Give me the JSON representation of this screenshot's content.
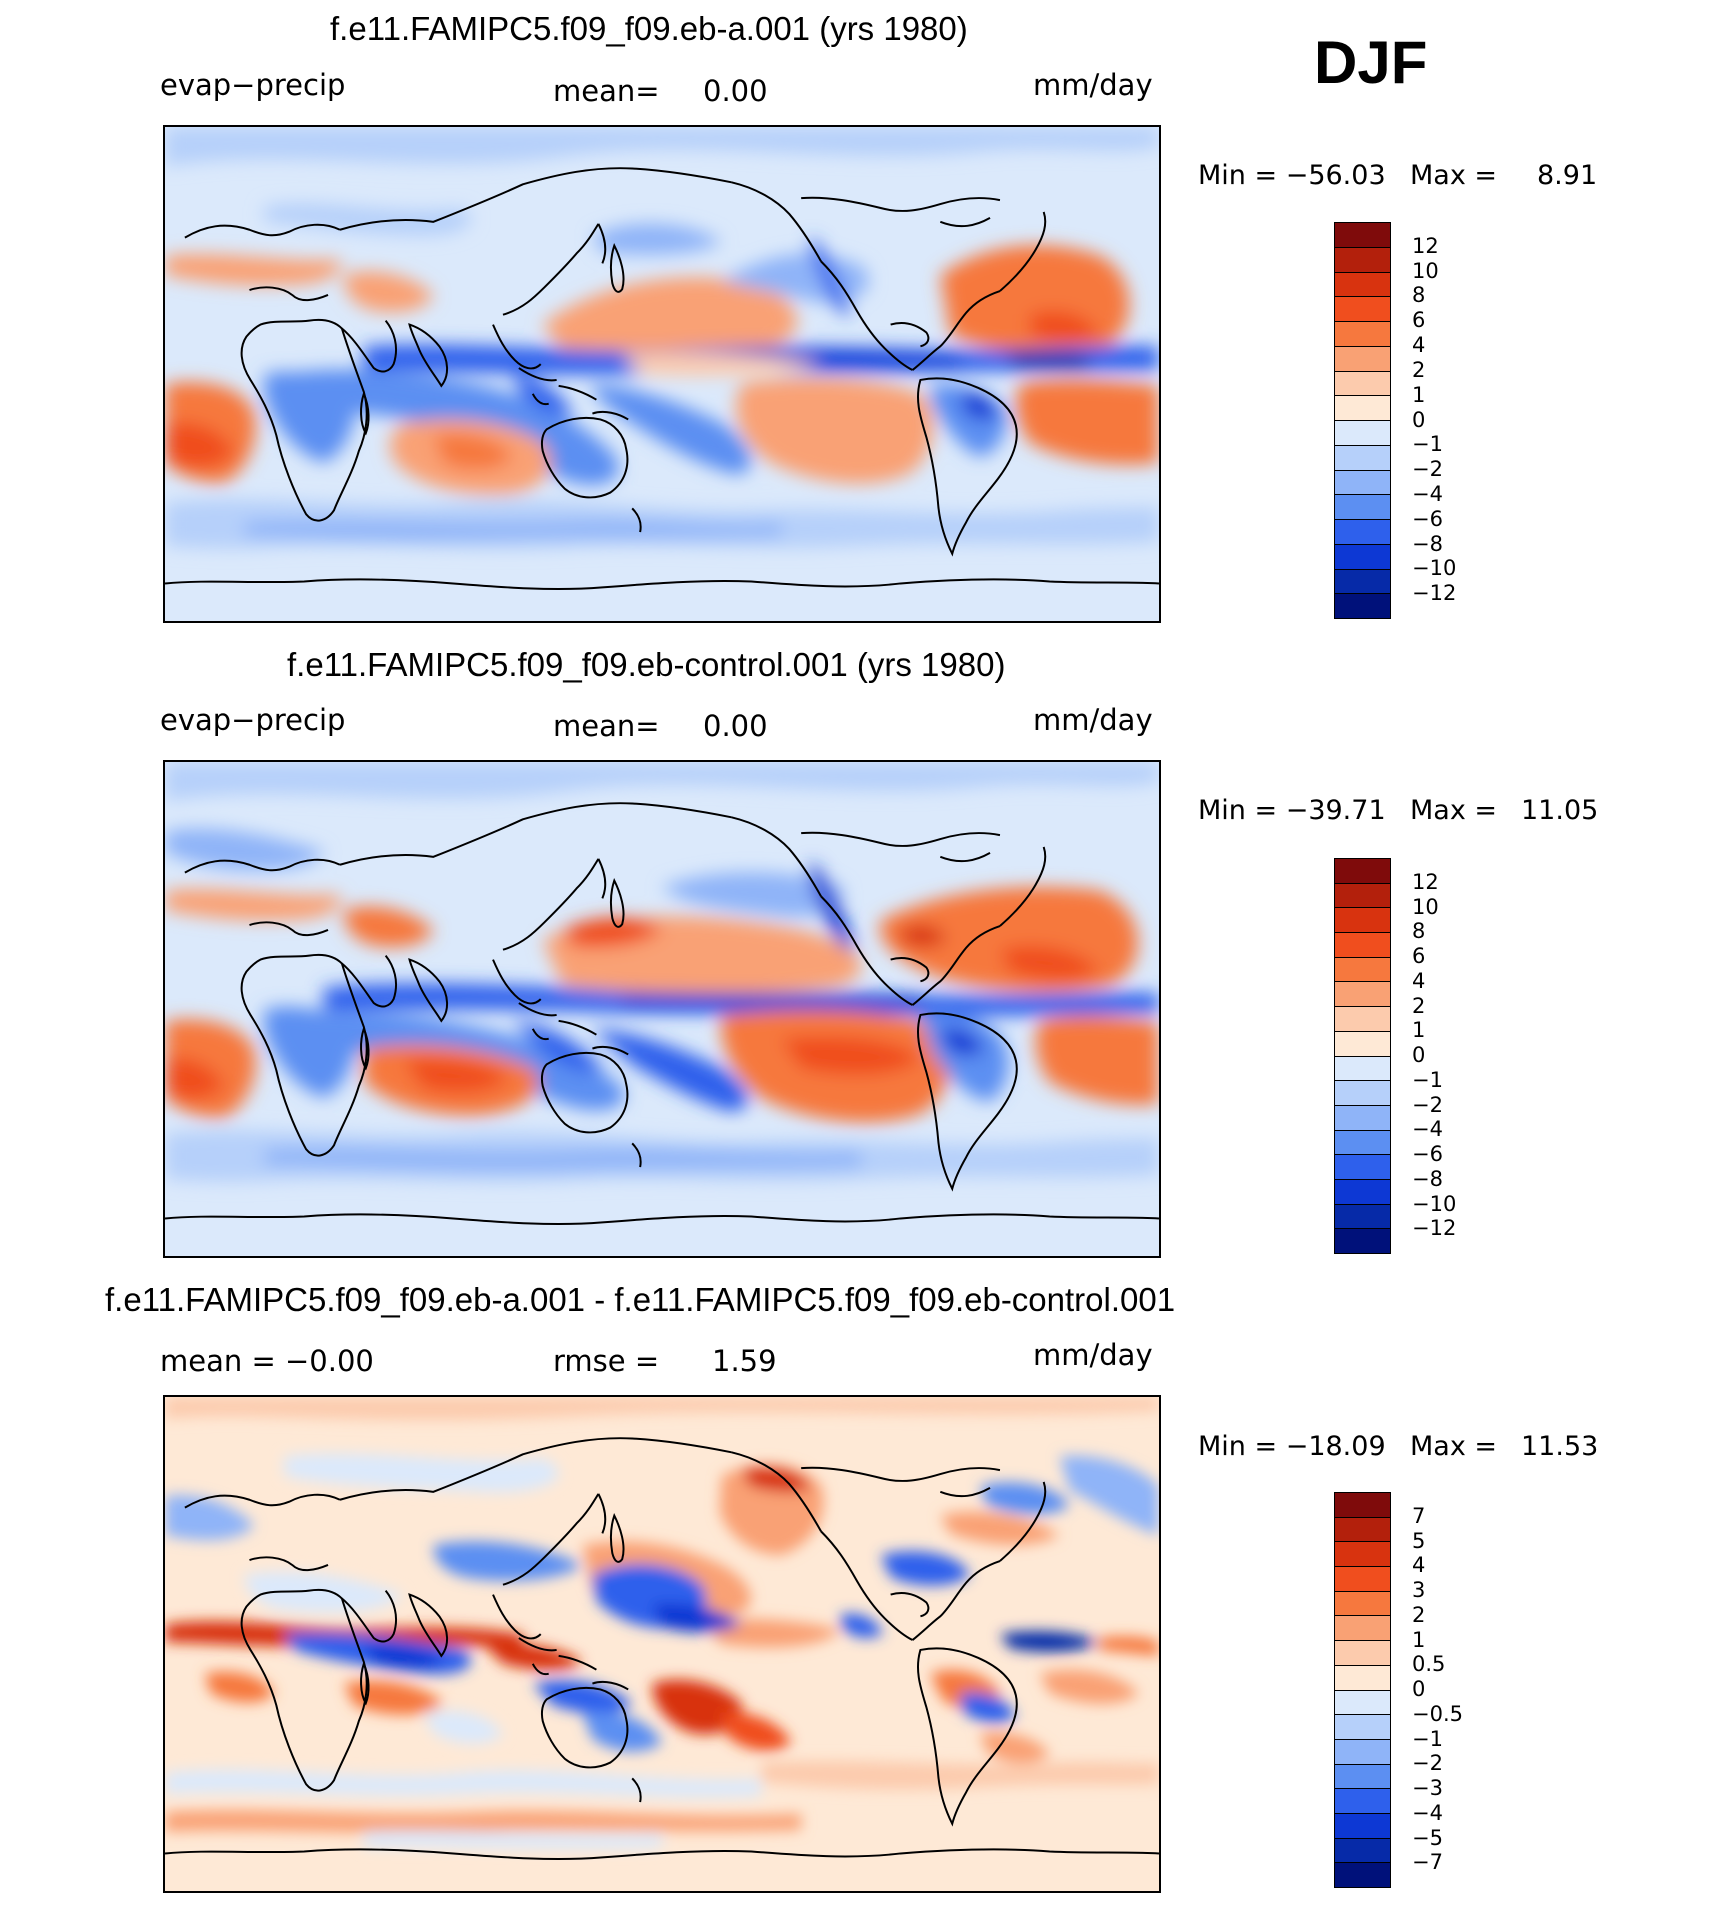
{
  "season": "DJF",
  "panels": [
    {
      "title": "f.e11.FAMIPC5.f09_f09.eb-a.001 (yrs 1980)",
      "left_label": "evap−precip",
      "mid_label": "mean=",
      "mid_value": "0.00",
      "units": "mm/day",
      "min_label": "Min  =  −56.03",
      "max_label": "Max  =",
      "max_value": "8.91"
    },
    {
      "title": "f.e11.FAMIPC5.f09_f09.eb-control.001 (yrs 1980)",
      "left_label": "evap−precip",
      "mid_label": "mean=",
      "mid_value": "0.00",
      "units": "mm/day",
      "min_label": "Min  =  −39.71",
      "max_label": "Max  =",
      "max_value": "11.05"
    },
    {
      "title": "f.e11.FAMIPC5.f09_f09.eb-a.001 - f.e11.FAMIPC5.f09_f09.eb-control.001",
      "left_label": "mean  =   −0.00",
      "mid_label": "rmse  =",
      "mid_value": "1.59",
      "units": "mm/day",
      "min_label": "Min  =  −18.09",
      "max_label": "Max  =",
      "max_value": "11.53"
    }
  ],
  "colorbars": [
    {
      "labels": [
        "12",
        "10",
        "8",
        "6",
        "4",
        "2",
        "1",
        "0",
        "−1",
        "−2",
        "−4",
        "−6",
        "−8",
        "−10",
        "−12"
      ],
      "colors": [
        "#7f0b0b",
        "#b3200c",
        "#d8330f",
        "#f04e1e",
        "#f6783e",
        "#f9a174",
        "#fccbad",
        "#fee9d6",
        "#dbe9fb",
        "#b6d0fa",
        "#8fb4f8",
        "#5c8ff2",
        "#2e60ec",
        "#0d38d4",
        "#062aa8",
        "#00117a"
      ]
    },
    {
      "labels": [
        "12",
        "10",
        "8",
        "6",
        "4",
        "2",
        "1",
        "0",
        "−1",
        "−2",
        "−4",
        "−6",
        "−8",
        "−10",
        "−12"
      ],
      "colors": [
        "#7f0b0b",
        "#b3200c",
        "#d8330f",
        "#f04e1e",
        "#f6783e",
        "#f9a174",
        "#fccbad",
        "#fee9d6",
        "#dbe9fb",
        "#b6d0fa",
        "#8fb4f8",
        "#5c8ff2",
        "#2e60ec",
        "#0d38d4",
        "#062aa8",
        "#00117a"
      ]
    },
    {
      "labels": [
        "7",
        "5",
        "4",
        "3",
        "2",
        "1",
        "0.5",
        "0",
        "−0.5",
        "−1",
        "−2",
        "−3",
        "−4",
        "−5",
        "−7"
      ],
      "colors": [
        "#7f0b0b",
        "#b3200c",
        "#d8330f",
        "#f04e1e",
        "#f6783e",
        "#f9a174",
        "#fccbad",
        "#fee9d6",
        "#dbe9fb",
        "#b6d0fa",
        "#8fb4f8",
        "#5c8ff2",
        "#2e60ec",
        "#0d38d4",
        "#062aa8",
        "#00117a"
      ]
    }
  ]
}
